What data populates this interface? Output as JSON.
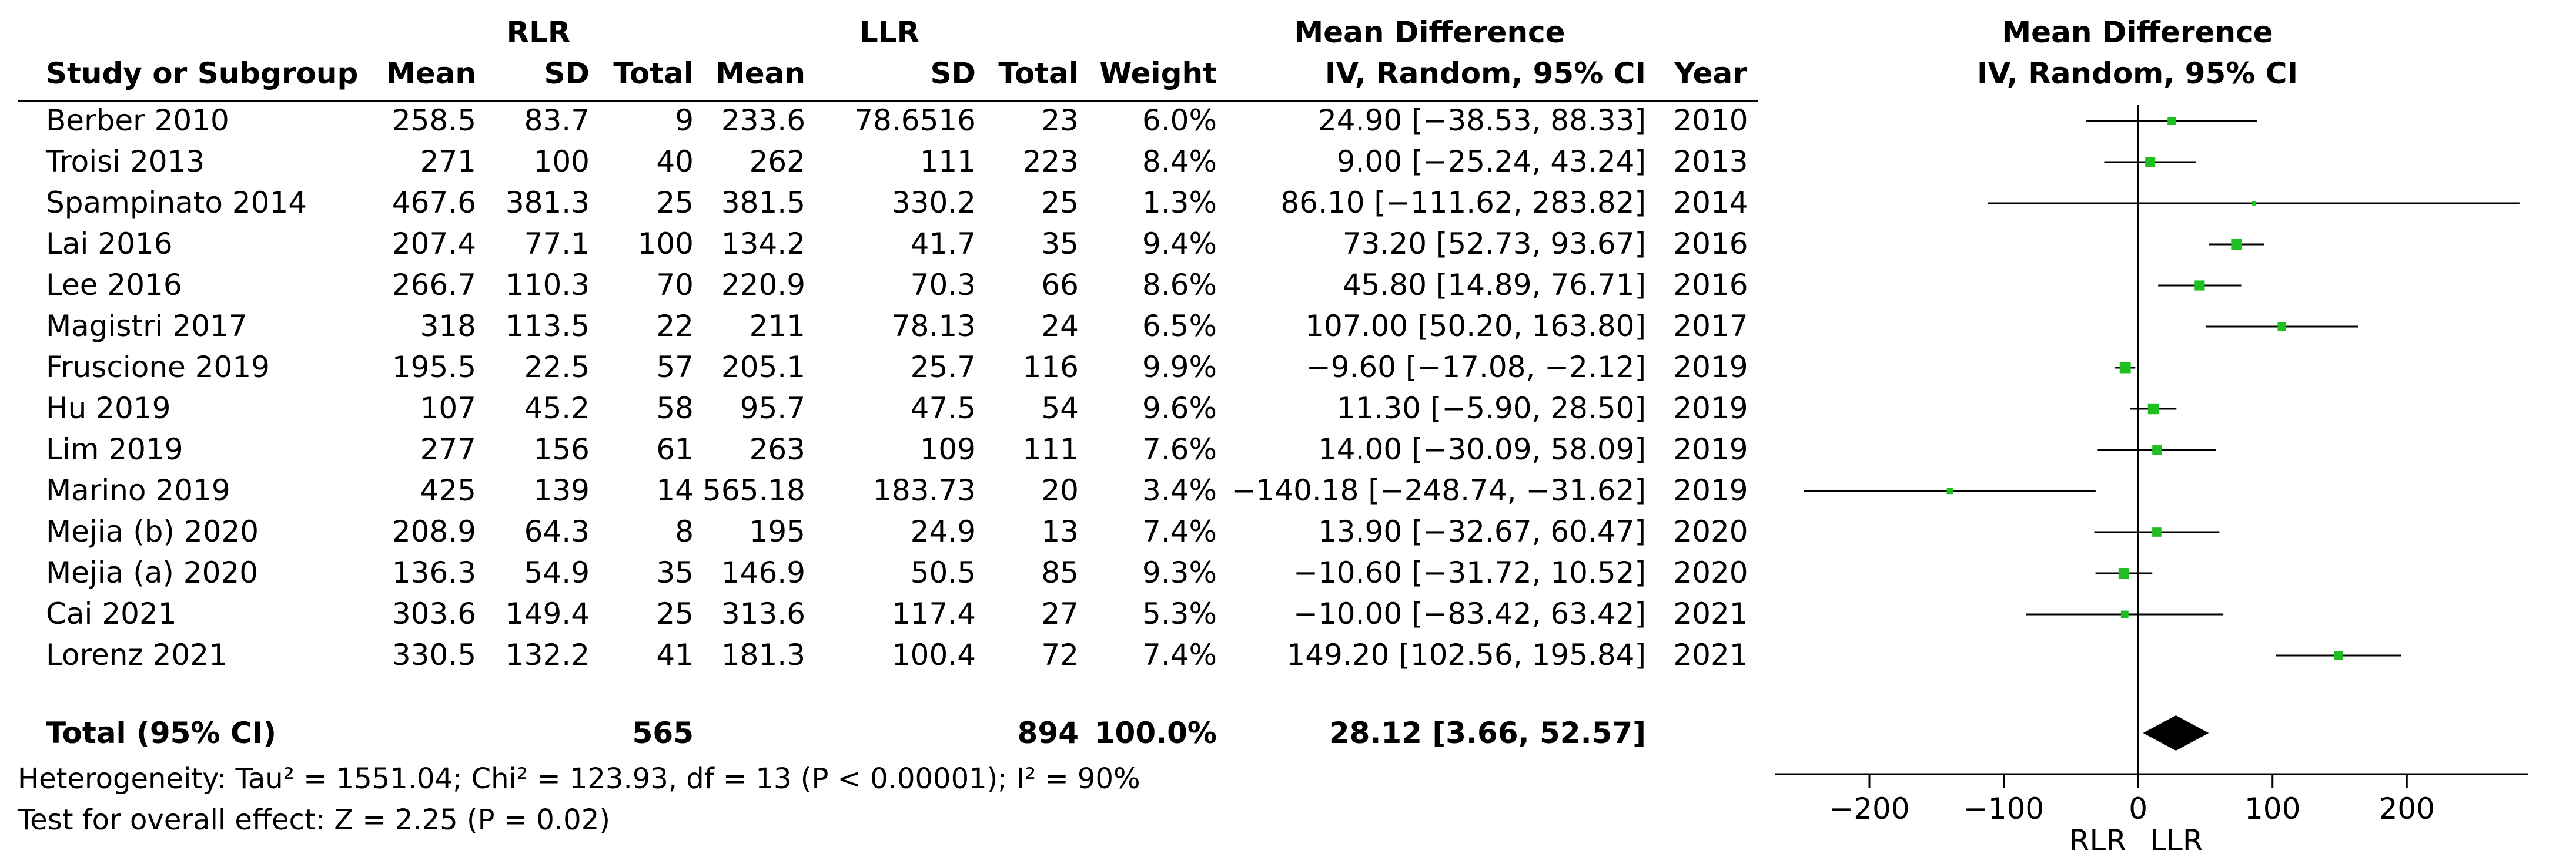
{
  "header": {
    "group1": "RLR",
    "group2": "LLR",
    "md_title_table": "Mean Difference",
    "md_sub_table": "IV, Random, 95% CI",
    "md_title_plot": "Mean Difference",
    "md_sub_plot": "IV, Random, 95% CI",
    "col_study": "Study or Subgroup",
    "col_mean1": "Mean",
    "col_sd1": "SD",
    "col_total1": "Total",
    "col_mean2": "Mean",
    "col_sd2": "SD",
    "col_total2": "Total",
    "col_weight": "Weight",
    "col_year": "Year"
  },
  "rows": [
    {
      "study": "Berber 2010",
      "mean1": "258.5",
      "sd1": "83.7",
      "total1": "9",
      "mean2": "233.6",
      "sd2": "78.6516",
      "total2": "23",
      "weight": "6.0%",
      "ci": "24.90 [−38.53, 88.33]",
      "year": "2010"
    },
    {
      "study": "Troisi 2013",
      "mean1": "271",
      "sd1": "100",
      "total1": "40",
      "mean2": "262",
      "sd2": "111",
      "total2": "223",
      "weight": "8.4%",
      "ci": "9.00 [−25.24, 43.24]",
      "year": "2013"
    },
    {
      "study": "Spampinato 2014",
      "mean1": "467.6",
      "sd1": "381.3",
      "total1": "25",
      "mean2": "381.5",
      "sd2": "330.2",
      "total2": "25",
      "weight": "1.3%",
      "ci": "86.10 [−111.62, 283.82]",
      "year": "2014"
    },
    {
      "study": "Lai 2016",
      "mean1": "207.4",
      "sd1": "77.1",
      "total1": "100",
      "mean2": "134.2",
      "sd2": "41.7",
      "total2": "35",
      "weight": "9.4%",
      "ci": "73.20 [52.73, 93.67]",
      "year": "2016"
    },
    {
      "study": "Lee 2016",
      "mean1": "266.7",
      "sd1": "110.3",
      "total1": "70",
      "mean2": "220.9",
      "sd2": "70.3",
      "total2": "66",
      "weight": "8.6%",
      "ci": "45.80 [14.89, 76.71]",
      "year": "2016"
    },
    {
      "study": "Magistri 2017",
      "mean1": "318",
      "sd1": "113.5",
      "total1": "22",
      "mean2": "211",
      "sd2": "78.13",
      "total2": "24",
      "weight": "6.5%",
      "ci": "107.00 [50.20, 163.80]",
      "year": "2017"
    },
    {
      "study": "Fruscione 2019",
      "mean1": "195.5",
      "sd1": "22.5",
      "total1": "57",
      "mean2": "205.1",
      "sd2": "25.7",
      "total2": "116",
      "weight": "9.9%",
      "ci": "−9.60 [−17.08, −2.12]",
      "year": "2019"
    },
    {
      "study": "Hu 2019",
      "mean1": "107",
      "sd1": "45.2",
      "total1": "58",
      "mean2": "95.7",
      "sd2": "47.5",
      "total2": "54",
      "weight": "9.6%",
      "ci": "11.30 [−5.90, 28.50]",
      "year": "2019"
    },
    {
      "study": "Lim 2019",
      "mean1": "277",
      "sd1": "156",
      "total1": "61",
      "mean2": "263",
      "sd2": "109",
      "total2": "111",
      "weight": "7.6%",
      "ci": "14.00 [−30.09, 58.09]",
      "year": "2019"
    },
    {
      "study": "Marino 2019",
      "mean1": "425",
      "sd1": "139",
      "total1": "14",
      "mean2": "565.18",
      "sd2": "183.73",
      "total2": "20",
      "weight": "3.4%",
      "ci": "−140.18 [−248.74, −31.62]",
      "year": "2019"
    },
    {
      "study": "Mejia (b) 2020",
      "mean1": "208.9",
      "sd1": "64.3",
      "total1": "8",
      "mean2": "195",
      "sd2": "24.9",
      "total2": "13",
      "weight": "7.4%",
      "ci": "13.90 [−32.67, 60.47]",
      "year": "2020"
    },
    {
      "study": "Mejia (a) 2020",
      "mean1": "136.3",
      "sd1": "54.9",
      "total1": "35",
      "mean2": "146.9",
      "sd2": "50.5",
      "total2": "85",
      "weight": "9.3%",
      "ci": "−10.60 [−31.72, 10.52]",
      "year": "2020"
    },
    {
      "study": "Cai 2021",
      "mean1": "303.6",
      "sd1": "149.4",
      "total1": "25",
      "mean2": "313.6",
      "sd2": "117.4",
      "total2": "27",
      "weight": "5.3%",
      "ci": "−10.00 [−83.42, 63.42]",
      "year": "2021"
    },
    {
      "study": "Lorenz 2021",
      "mean1": "330.5",
      "sd1": "132.2",
      "total1": "41",
      "mean2": "181.3",
      "sd2": "100.4",
      "total2": "72",
      "weight": "7.4%",
      "ci": "149.20 [102.56, 195.84]",
      "year": "2021"
    }
  ],
  "total": {
    "label": "Total (95% CI)",
    "total1": "565",
    "total2": "894",
    "weight": "100.0%",
    "ci": "28.12 [3.66, 52.57]"
  },
  "footer": {
    "heterogeneity": "Heterogeneity: Tau² = 1551.04; Chi² = 123.93, df = 13 (P < 0.00001); I² = 90%",
    "overall_effect": "Test for overall effect: Z = 2.25 (P = 0.02)"
  },
  "axis": {
    "favours_left": "RLR",
    "favours_right": "LLR"
  },
  "colors": {
    "marker": "#1fbf1f",
    "line": "#000000",
    "diamond": "#000000"
  },
  "chart_data": {
    "type": "forest",
    "xlim": [
      -270,
      290
    ],
    "ticks": [
      -200,
      -100,
      0,
      100,
      200
    ],
    "tick_labels": [
      "−200",
      "−100",
      "0",
      "100",
      "200"
    ],
    "points": [
      {
        "study": "Berber 2010",
        "md": 24.9,
        "lo": -38.53,
        "hi": 88.33,
        "weight": 6.0
      },
      {
        "study": "Troisi 2013",
        "md": 9.0,
        "lo": -25.24,
        "hi": 43.24,
        "weight": 8.4
      },
      {
        "study": "Spampinato 2014",
        "md": 86.1,
        "lo": -111.62,
        "hi": 283.82,
        "weight": 1.3
      },
      {
        "study": "Lai 2016",
        "md": 73.2,
        "lo": 52.73,
        "hi": 93.67,
        "weight": 9.4
      },
      {
        "study": "Lee 2016",
        "md": 45.8,
        "lo": 14.89,
        "hi": 76.71,
        "weight": 8.6
      },
      {
        "study": "Magistri 2017",
        "md": 107.0,
        "lo": 50.2,
        "hi": 163.8,
        "weight": 6.5
      },
      {
        "study": "Fruscione 2019",
        "md": -9.6,
        "lo": -17.08,
        "hi": -2.12,
        "weight": 9.9
      },
      {
        "study": "Hu 2019",
        "md": 11.3,
        "lo": -5.9,
        "hi": 28.5,
        "weight": 9.6
      },
      {
        "study": "Lim 2019",
        "md": 14.0,
        "lo": -30.09,
        "hi": 58.09,
        "weight": 7.6
      },
      {
        "study": "Marino 2019",
        "md": -140.18,
        "lo": -248.74,
        "hi": -31.62,
        "weight": 3.4
      },
      {
        "study": "Mejia (b) 2020",
        "md": 13.9,
        "lo": -32.67,
        "hi": 60.47,
        "weight": 7.4
      },
      {
        "study": "Mejia (a) 2020",
        "md": -10.6,
        "lo": -31.72,
        "hi": 10.52,
        "weight": 9.3
      },
      {
        "study": "Cai 2021",
        "md": -10.0,
        "lo": -83.42,
        "hi": 63.42,
        "weight": 5.3
      },
      {
        "study": "Lorenz 2021",
        "md": 149.2,
        "lo": 102.56,
        "hi": 195.84,
        "weight": 7.4
      }
    ],
    "pooled": {
      "md": 28.12,
      "lo": 3.66,
      "hi": 52.57
    }
  }
}
